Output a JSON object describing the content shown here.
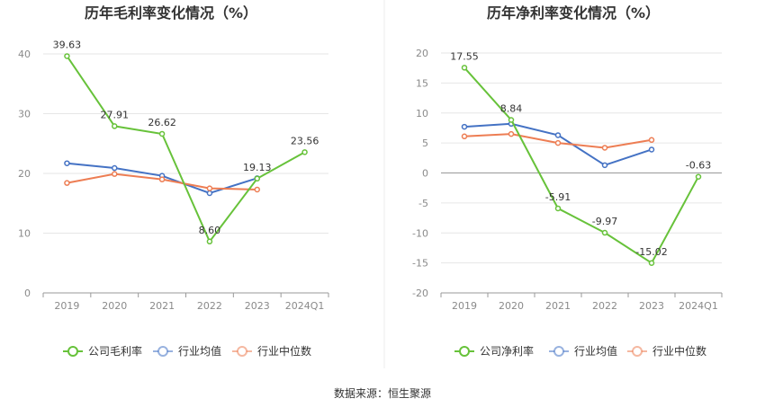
{
  "source_label": "数据来源：恒生聚源",
  "colors": {
    "company": "#67c23a",
    "avg": "#4472c4",
    "median": "#ed7d53"
  },
  "chart_data": [
    {
      "type": "line",
      "title": "历年毛利率变化情况（%）",
      "categories": [
        "2019",
        "2020",
        "2021",
        "2022",
        "2023",
        "2024Q1"
      ],
      "ylim": [
        0,
        40
      ],
      "yticks": [
        0,
        10,
        20,
        30,
        40
      ],
      "grid": true,
      "legend": "bottom",
      "series": [
        {
          "name": "公司毛利率",
          "key": "company",
          "values": [
            39.63,
            27.91,
            26.62,
            8.6,
            19.13,
            23.56
          ],
          "labels": [
            "39.63",
            "27.91",
            "26.62",
            "8.60",
            "19.13",
            "23.56"
          ]
        },
        {
          "name": "行业均值",
          "key": "avg",
          "values": [
            21.7,
            20.9,
            19.6,
            16.7,
            19.2,
            null
          ]
        },
        {
          "name": "行业中位数",
          "key": "median",
          "values": [
            18.4,
            19.9,
            19.0,
            17.5,
            17.3,
            null
          ]
        }
      ]
    },
    {
      "type": "line",
      "title": "历年净利率变化情况（%）",
      "categories": [
        "2019",
        "2020",
        "2021",
        "2022",
        "2023",
        "2024Q1"
      ],
      "ylim": [
        -20,
        20
      ],
      "yticks": [
        -20,
        -15,
        -10,
        -5,
        0,
        5,
        10,
        15,
        20
      ],
      "grid": true,
      "legend": "bottom",
      "series": [
        {
          "name": "公司净利率",
          "key": "company",
          "values": [
            17.55,
            8.84,
            -5.91,
            -9.97,
            -15.02,
            -0.63
          ],
          "labels": [
            "17.55",
            "8.84",
            "-5.91",
            "-9.97",
            "-15.02",
            "-0.63"
          ]
        },
        {
          "name": "行业均值",
          "key": "avg",
          "values": [
            7.7,
            8.2,
            6.3,
            1.3,
            3.9,
            null
          ]
        },
        {
          "name": "行业中位数",
          "key": "median",
          "values": [
            6.1,
            6.5,
            5.0,
            4.2,
            5.5,
            null
          ]
        }
      ]
    }
  ]
}
